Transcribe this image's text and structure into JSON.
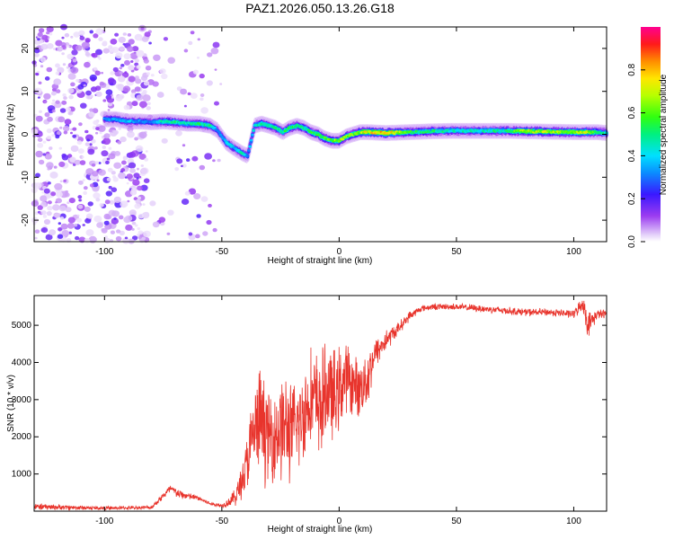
{
  "title": "PAZ1.2026.050.13.26.G18",
  "chart_data": [
    {
      "type": "heatmap",
      "title": "PAZ1.2026.050.13.26.G18",
      "xlabel": "Height of straight line (km)",
      "ylabel": "Frequency (Hz)",
      "xlim": [
        -130,
        114
      ],
      "ylim": [
        -25,
        25
      ],
      "xticks": [
        -100,
        -50,
        0,
        50,
        100
      ],
      "yticks": [
        -20,
        -10,
        0,
        10,
        20
      ],
      "colorbar": {
        "label": "Normalized spectral amplitude",
        "range": [
          0,
          1
        ],
        "ticks": [
          "0.0",
          "0.2",
          "0.4",
          "0.6",
          "0.8"
        ],
        "tick_values": [
          0,
          0.2,
          0.4,
          0.6,
          0.8
        ],
        "colormap": "rainbow"
      },
      "ridge": {
        "description": "dominant frequency track",
        "x": [
          -100,
          -95,
          -90,
          -85,
          -80,
          -75,
          -70,
          -65,
          -60,
          -55,
          -52,
          -48,
          -44,
          -41,
          -39,
          -36,
          -33,
          -30,
          -27,
          -24,
          -21,
          -18,
          -15,
          -12,
          -9,
          -6,
          -3,
          0,
          3,
          6,
          9,
          12,
          20,
          30,
          40,
          50,
          60,
          70,
          80,
          90,
          100,
          105,
          110,
          114
        ],
        "freq": [
          3.5,
          3.5,
          3.0,
          3.0,
          2.8,
          3.0,
          2.8,
          2.5,
          2.5,
          2.0,
          1.0,
          -2.0,
          -3.5,
          -4.5,
          -5.0,
          2.0,
          2.5,
          2.0,
          1.5,
          0.5,
          1.5,
          2.0,
          1.5,
          0.5,
          0.0,
          -1.0,
          -1.5,
          -1.5,
          -0.5,
          0.0,
          0.5,
          0.5,
          0.3,
          0.5,
          0.7,
          0.8,
          0.8,
          0.8,
          0.7,
          0.6,
          0.5,
          0.5,
          0.5,
          0.3
        ],
        "amplitude": [
          0.35,
          0.35,
          0.4,
          0.35,
          0.3,
          0.55,
          0.55,
          0.5,
          0.55,
          0.55,
          0.3,
          0.45,
          0.4,
          0.5,
          0.35,
          0.45,
          0.55,
          0.5,
          0.55,
          0.55,
          0.6,
          0.55,
          0.55,
          0.6,
          0.6,
          0.65,
          0.65,
          0.75,
          0.7,
          0.7,
          0.75,
          0.85,
          0.95,
          0.6,
          0.55,
          0.5,
          0.5,
          0.55,
          0.75,
          0.75,
          0.7,
          0.8,
          0.6,
          0.5
        ]
      },
      "noise_region": {
        "x_start": -130,
        "x_end": -80,
        "scatter_until": -50,
        "amplitude_range": [
          0.02,
          0.2
        ]
      }
    },
    {
      "type": "line",
      "title": "",
      "xlabel": "Height of straight line (km)",
      "ylabel": "SNR (10 * v/v)",
      "xlim": [
        -130,
        114
      ],
      "ylim": [
        0,
        5800
      ],
      "xticks": [
        -100,
        -50,
        0,
        50,
        100
      ],
      "yticks": [
        1000,
        2000,
        3000,
        4000,
        5000
      ],
      "color": "#e8342c",
      "envelope": {
        "x": [
          -130,
          -100,
          -80,
          -72,
          -68,
          -60,
          -55,
          -50,
          -47,
          -44,
          -40,
          -36,
          -33,
          -30,
          -27,
          -24,
          -20,
          -16,
          -12,
          -8,
          -5,
          -2,
          0,
          3,
          6,
          9,
          12,
          15,
          20,
          25,
          30,
          35,
          40,
          45,
          50,
          60,
          70,
          80,
          90,
          100,
          104,
          106,
          110,
          114
        ],
        "mean": [
          120,
          80,
          100,
          600,
          450,
          350,
          200,
          150,
          250,
          400,
          1100,
          2200,
          2400,
          2000,
          2100,
          2300,
          2100,
          2500,
          3100,
          2800,
          3300,
          3000,
          3300,
          3600,
          3400,
          3300,
          3600,
          4200,
          4600,
          4900,
          5250,
          5450,
          5500,
          5500,
          5500,
          5450,
          5400,
          5350,
          5350,
          5300,
          5600,
          5000,
          5300,
          5300
        ],
        "spread": [
          100,
          60,
          60,
          150,
          150,
          80,
          60,
          60,
          150,
          300,
          800,
          1500,
          1800,
          1400,
          1500,
          1800,
          1500,
          1500,
          1500,
          1700,
          1500,
          1500,
          1300,
          1200,
          900,
          900,
          1000,
          500,
          350,
          200,
          150,
          100,
          100,
          100,
          100,
          120,
          120,
          120,
          120,
          130,
          250,
          400,
          150,
          150
        ]
      }
    }
  ]
}
